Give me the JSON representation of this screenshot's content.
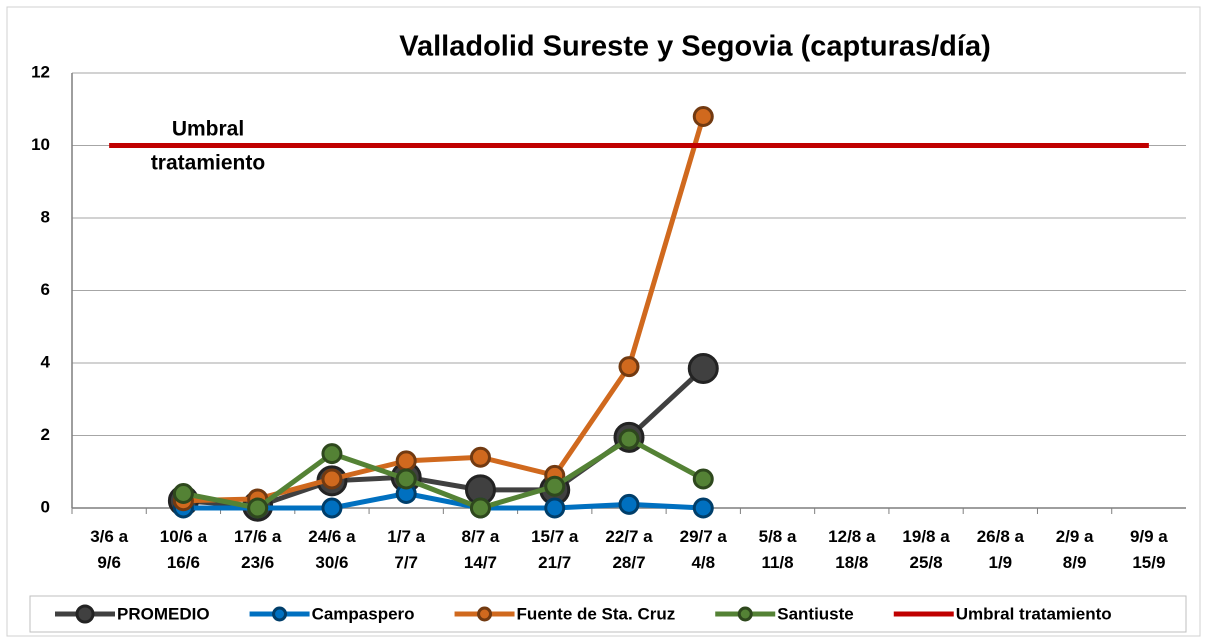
{
  "chart_data": {
    "type": "line",
    "title": "Valladolid Sureste y Segovia (capturas/día)",
    "annotation": [
      "Umbral",
      "tratamiento"
    ],
    "categories": [
      "3/6 a 9/6",
      "10/6 a 16/6",
      "17/6 a 23/6",
      "24/6 a 30/6",
      "1/7 a 7/7",
      "8/7 a 14/7",
      "15/7 a 21/7",
      "22/7 a 28/7",
      "29/7 a 4/8",
      "5/8 a 11/8",
      "12/8 a 18/8",
      "19/8 a 25/8",
      "26/8 a 1/9",
      "2/9 a 8/9",
      "9/9 a 15/9"
    ],
    "series": [
      {
        "name": "PROMEDIO",
        "color": "#404040",
        "values": [
          null,
          0.2,
          0.05,
          0.75,
          0.85,
          0.5,
          0.5,
          1.95,
          3.85,
          null,
          null,
          null,
          null,
          null,
          null
        ]
      },
      {
        "name": "Campaspero",
        "color": "#0070c0",
        "values": [
          null,
          0,
          0,
          0,
          0.4,
          0,
          0,
          0.1,
          0,
          null,
          null,
          null,
          null,
          null,
          null
        ]
      },
      {
        "name": "Fuente de Sta. Cruz",
        "color": "#d0691e",
        "values": [
          null,
          0.2,
          0.25,
          0.8,
          1.3,
          1.4,
          0.9,
          3.9,
          10.8,
          null,
          null,
          null,
          null,
          null,
          null
        ]
      },
      {
        "name": "Santiuste",
        "color": "#548235",
        "values": [
          null,
          0.4,
          0,
          1.5,
          0.8,
          0,
          0.6,
          1.9,
          0.8,
          null,
          null,
          null,
          null,
          null,
          null
        ]
      },
      {
        "name": "Umbral tratamiento",
        "color": "#c00000",
        "marker": false,
        "values": [
          10,
          10,
          10,
          10,
          10,
          10,
          10,
          10,
          10,
          10,
          10,
          10,
          10,
          10,
          10
        ]
      }
    ],
    "ylim": [
      0,
      12
    ],
    "yticks": [
      0,
      2,
      4,
      6,
      8,
      10,
      12
    ],
    "grid": true,
    "legend": "bottom"
  }
}
